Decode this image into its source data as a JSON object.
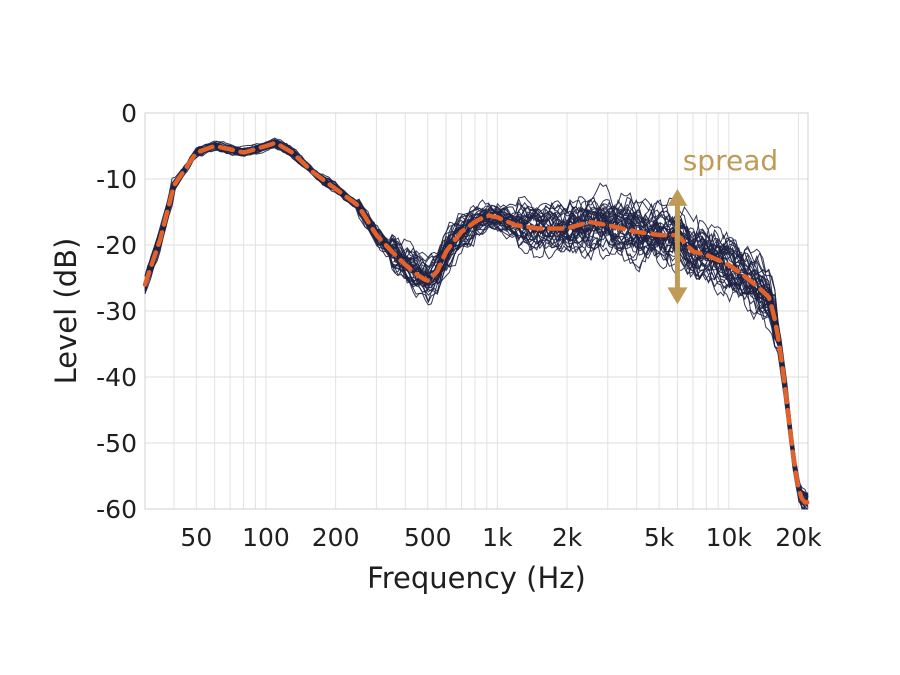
{
  "chart_data": {
    "type": "line",
    "xlabel": "Frequency (Hz)",
    "ylabel": "Level (dB)",
    "x_scale": "log",
    "xlim": [
      30,
      22000
    ],
    "ylim": [
      -60,
      0
    ],
    "grid": true,
    "x_ticks": [
      {
        "value": 50,
        "label": "50"
      },
      {
        "value": 100,
        "label": "100"
      },
      {
        "value": 200,
        "label": "200"
      },
      {
        "value": 500,
        "label": "500"
      },
      {
        "value": 1000,
        "label": "1k"
      },
      {
        "value": 2000,
        "label": "2k"
      },
      {
        "value": 5000,
        "label": "5k"
      },
      {
        "value": 10000,
        "label": "10k"
      },
      {
        "value": 20000,
        "label": "20k"
      }
    ],
    "y_ticks": [
      {
        "value": 0,
        "label": "0"
      },
      {
        "value": -10,
        "label": "-10"
      },
      {
        "value": -20,
        "label": "-20"
      },
      {
        "value": -30,
        "label": "-30"
      },
      {
        "value": -40,
        "label": "-40"
      },
      {
        "value": -50,
        "label": "-50"
      },
      {
        "value": -60,
        "label": "-60"
      }
    ],
    "individual_count": 40,
    "individual_color": "#1e2244",
    "mean_color": "#e2622a",
    "mean_curve": {
      "x": [
        30,
        35,
        40,
        50,
        60,
        70,
        80,
        100,
        110,
        130,
        160,
        200,
        250,
        300,
        350,
        400,
        450,
        500,
        550,
        600,
        700,
        800,
        900,
        1000,
        1200,
        1500,
        2000,
        2500,
        3000,
        4000,
        5000,
        6000,
        7000,
        8000,
        10000,
        12000,
        14000,
        15000,
        16000,
        17000,
        18000,
        19000,
        20000,
        21000
      ],
      "y": [
        -26,
        -19,
        -11,
        -6,
        -5,
        -5.5,
        -6,
        -5,
        -4.5,
        -6,
        -9,
        -11.5,
        -14,
        -18.5,
        -21,
        -23,
        -24.5,
        -25.5,
        -24,
        -21,
        -18,
        -16.5,
        -15.5,
        -15.8,
        -17,
        -17.5,
        -17.5,
        -16.5,
        -17,
        -18,
        -18.5,
        -18.5,
        -21,
        -21.5,
        -23,
        -25,
        -27,
        -28,
        -32,
        -38,
        -45,
        -52,
        -57,
        -59
      ]
    },
    "annotation": {
      "label": "spread",
      "color": "#bf9b58",
      "x": 6000,
      "y_range": [
        -11.5,
        -29
      ]
    }
  }
}
